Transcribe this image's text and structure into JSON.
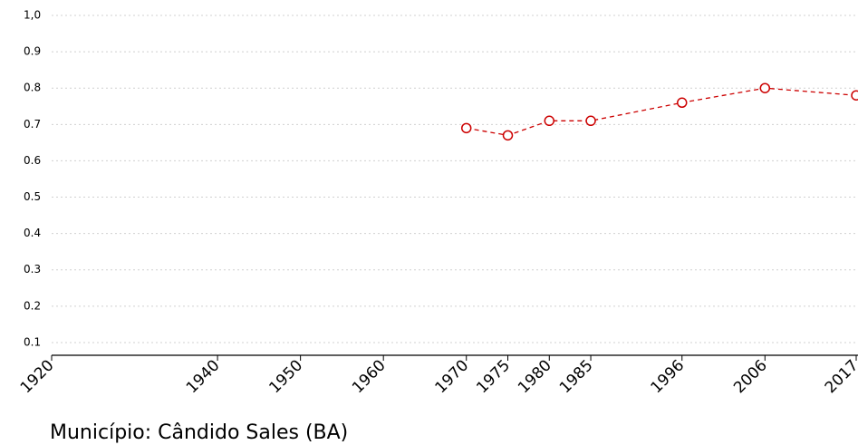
{
  "chart_data": {
    "type": "line",
    "title": "Município: Cândido Sales (BA)",
    "x": [
      1970,
      1975,
      1980,
      1985,
      1996,
      2006,
      2017
    ],
    "series": [
      {
        "name": "Cândido Sales (BA)",
        "color": "#cc0000",
        "values": [
          0.69,
          0.67,
          0.71,
          0.71,
          0.76,
          0.8,
          0.78
        ]
      }
    ],
    "xlim": [
      1920,
      2017
    ],
    "xticks": [
      1920,
      1940,
      1950,
      1960,
      1970,
      1975,
      1980,
      1985,
      1996,
      2006,
      2017
    ],
    "ylim": [
      0.065,
      1.0
    ],
    "yticks": [
      0.1,
      0.2,
      0.3,
      0.4,
      0.5,
      0.6,
      0.7,
      0.8,
      0.9,
      {
        "value": 1.0,
        "label": "1,0"
      }
    ],
    "grid": true,
    "line_style": "dashed"
  }
}
